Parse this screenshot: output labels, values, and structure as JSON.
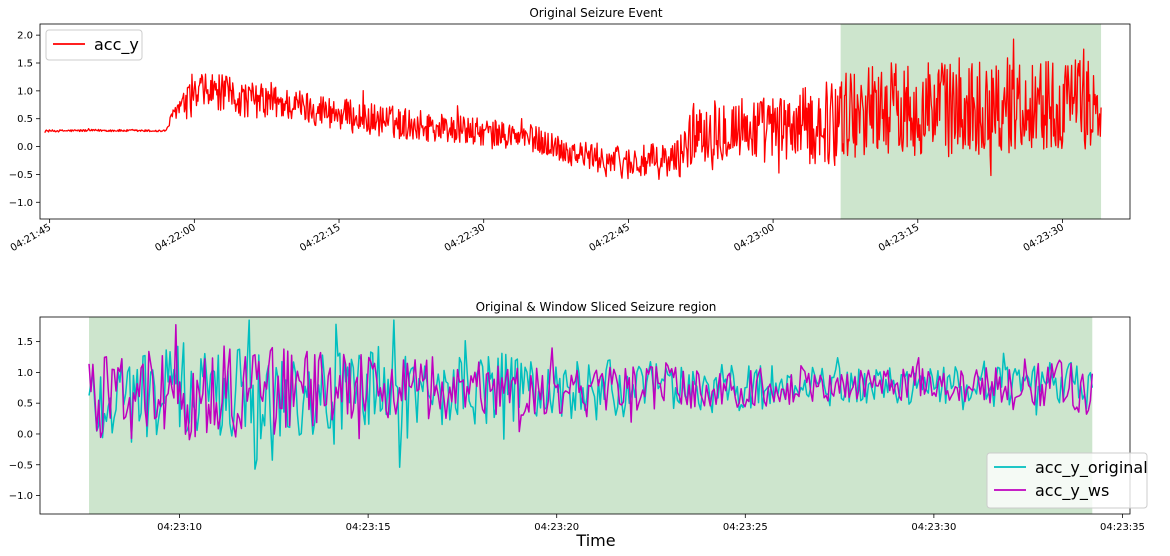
{
  "chart_data": [
    {
      "type": "line",
      "title": "Original Seizure Event",
      "xlabel": "",
      "ylabel": "",
      "x_axis": "time",
      "xlim": [
        "04:21:44",
        "04:23:37"
      ],
      "ylim": [
        -1.3,
        2.2
      ],
      "yticks": [
        -1.0,
        -0.5,
        0.0,
        0.5,
        1.0,
        1.5,
        2.0
      ],
      "ytick_labels": [
        "−1.0",
        "−0.5",
        "0.0",
        "0.5",
        "1.0",
        "1.5",
        "2.0"
      ],
      "xticks": [
        "04:21:45",
        "04:22:00",
        "04:22:15",
        "04:22:30",
        "04:22:45",
        "04:23:00",
        "04:23:15",
        "04:23:30"
      ],
      "grid": false,
      "legend": "upper-left",
      "shaded_region": {
        "start": "04:23:07",
        "end": "04:23:34",
        "color": "#cde5cd"
      },
      "series": [
        {
          "name": "acc_y",
          "color": "#ff0000",
          "points": [
            [
              "04:21:44.5",
              0.28
            ],
            [
              "04:21:50",
              0.29
            ],
            [
              "04:21:57",
              0.28
            ],
            [
              "04:21:57.5",
              0.45
            ],
            [
              "04:21:58",
              0.65
            ],
            [
              "04:21:59",
              0.75
            ],
            [
              "04:22:00",
              0.9
            ],
            [
              "04:22:02",
              1.0
            ],
            [
              "04:22:05",
              0.85
            ],
            [
              "04:22:08",
              0.8
            ],
            [
              "04:22:12",
              0.7
            ],
            [
              "04:22:16",
              0.55
            ],
            [
              "04:22:20",
              0.45
            ],
            [
              "04:22:25",
              0.35
            ],
            [
              "04:22:30",
              0.25
            ],
            [
              "04:22:35",
              0.15
            ],
            [
              "04:22:40",
              -0.15
            ],
            [
              "04:22:45",
              -0.3
            ],
            [
              "04:22:50",
              -0.25
            ],
            [
              "04:22:52",
              0.3
            ],
            [
              "04:22:55",
              0.35
            ],
            [
              "04:23:00",
              0.3
            ],
            [
              "04:23:05",
              0.4
            ],
            [
              "04:23:10",
              0.7
            ],
            [
              "04:23:15",
              0.7
            ],
            [
              "04:23:20",
              0.7
            ],
            [
              "04:23:25",
              0.75
            ],
            [
              "04:23:30",
              0.78
            ],
            [
              "04:23:34",
              0.75
            ]
          ],
          "amplitude_envelope": [
            [
              "04:21:44.5",
              0.02
            ],
            [
              "04:21:57",
              0.02
            ],
            [
              "04:21:58",
              0.15
            ],
            [
              "04:22:00",
              0.35
            ],
            [
              "04:22:10",
              0.3
            ],
            [
              "04:22:20",
              0.3
            ],
            [
              "04:22:30",
              0.25
            ],
            [
              "04:22:40",
              0.25
            ],
            [
              "04:22:50",
              0.35
            ],
            [
              "04:22:52",
              0.6
            ],
            [
              "04:23:00",
              0.6
            ],
            [
              "04:23:07",
              0.8
            ],
            [
              "04:23:20",
              0.9
            ],
            [
              "04:23:34",
              0.8
            ]
          ]
        }
      ]
    },
    {
      "type": "line",
      "title": "Original & Window Sliced Seizure region",
      "xlabel": "Time",
      "ylabel": "",
      "x_axis": "time",
      "xlim": [
        "04:23:06.3",
        "04:23:35.2"
      ],
      "ylim": [
        -1.3,
        1.9
      ],
      "yticks": [
        -1.0,
        -0.5,
        0.0,
        0.5,
        1.0,
        1.5
      ],
      "ytick_labels": [
        "−1.0",
        "−0.5",
        "0.0",
        "0.5",
        "1.0",
        "1.5"
      ],
      "xticks": [
        "04:23:10",
        "04:23:15",
        "04:23:20",
        "04:23:25",
        "04:23:30",
        "04:23:35"
      ],
      "grid": false,
      "legend": "lower-right",
      "shaded_region": {
        "start": "04:23:07.6",
        "end": "04:23:34.2",
        "color": "#cde5cd"
      },
      "series": [
        {
          "name": "acc_y_original",
          "color": "#00bfbf",
          "points": [
            [
              "04:23:07.6",
              0.55
            ],
            [
              "04:23:10",
              0.7
            ],
            [
              "04:23:12",
              0.65
            ],
            [
              "04:23:15",
              0.7
            ],
            [
              "04:23:18",
              0.72
            ],
            [
              "04:23:20",
              0.7
            ],
            [
              "04:23:22",
              0.72
            ],
            [
              "04:23:25",
              0.75
            ],
            [
              "04:23:28",
              0.78
            ],
            [
              "04:23:30",
              0.8
            ],
            [
              "04:23:32",
              0.8
            ],
            [
              "04:23:34.2",
              0.78
            ]
          ],
          "amplitude_envelope": [
            [
              "04:23:07.6",
              0.8
            ],
            [
              "04:23:12",
              0.8
            ],
            [
              "04:23:16",
              0.7
            ],
            [
              "04:23:20",
              0.55
            ],
            [
              "04:23:24",
              0.4
            ],
            [
              "04:23:28",
              0.3
            ],
            [
              "04:23:32",
              0.3
            ],
            [
              "04:23:34.2",
              0.45
            ]
          ]
        },
        {
          "name": "acc_y_ws",
          "color": "#bf00bf",
          "points": [
            [
              "04:23:07.6",
              0.5
            ],
            [
              "04:23:10",
              0.65
            ],
            [
              "04:23:12",
              0.7
            ],
            [
              "04:23:15",
              0.72
            ],
            [
              "04:23:18",
              0.72
            ],
            [
              "04:23:20",
              0.72
            ],
            [
              "04:23:22",
              0.74
            ],
            [
              "04:23:25",
              0.76
            ],
            [
              "04:23:28",
              0.78
            ],
            [
              "04:23:30",
              0.8
            ],
            [
              "04:23:32",
              0.8
            ],
            [
              "04:23:34.2",
              0.78
            ]
          ],
          "amplitude_envelope": [
            [
              "04:23:07.6",
              0.75
            ],
            [
              "04:23:12",
              0.75
            ],
            [
              "04:23:16",
              0.5
            ],
            [
              "04:23:20",
              0.4
            ],
            [
              "04:23:24",
              0.35
            ],
            [
              "04:23:28",
              0.25
            ],
            [
              "04:23:32",
              0.3
            ],
            [
              "04:23:34.2",
              0.5
            ]
          ]
        }
      ]
    }
  ]
}
